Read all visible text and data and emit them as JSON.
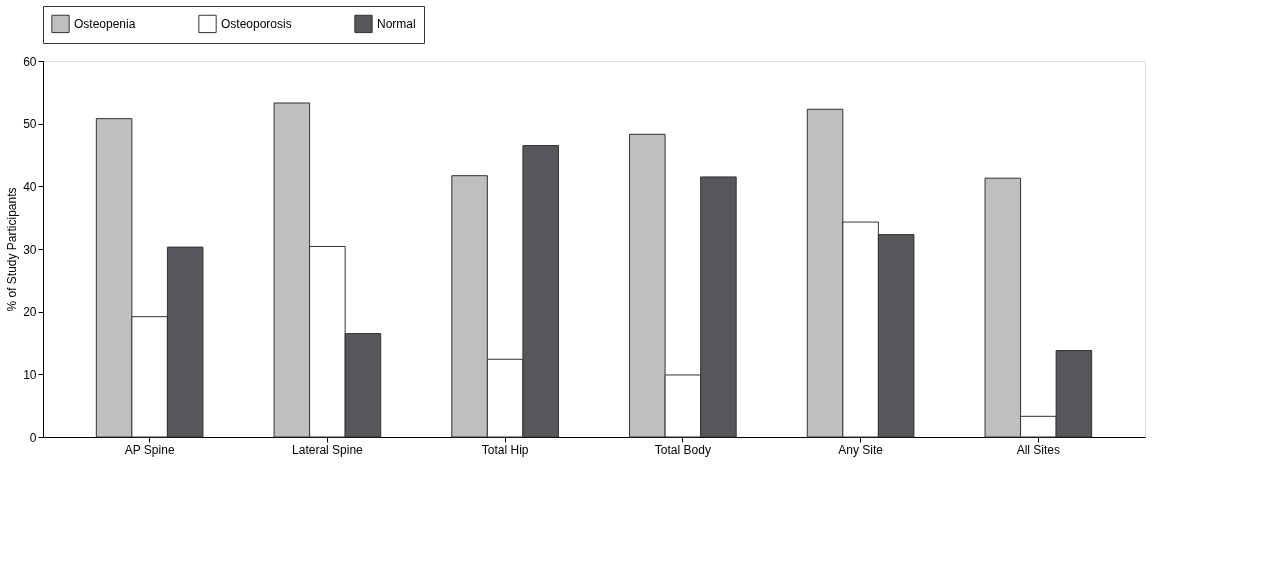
{
  "chart_data": {
    "type": "bar",
    "ylabel": "% of Study Participants",
    "categories": [
      "AP Spine",
      "Lateral Spine",
      "Total Hip",
      "Total Body",
      "Any Site",
      "All Sites"
    ],
    "series": [
      {
        "name": "Osteopenia",
        "color": "#bebfc1",
        "values": [
          50.8,
          53.3,
          41.7,
          48.3,
          52.3,
          41.3
        ]
      },
      {
        "name": "Osteoporosis",
        "color": "#ffffff",
        "values": [
          19.2,
          30.4,
          12.4,
          9.9,
          34.3,
          3.3
        ]
      },
      {
        "name": "Normal",
        "color": "#56575b",
        "values": [
          30.3,
          16.5,
          46.5,
          41.5,
          32.3,
          13.8
        ]
      }
    ],
    "ylim": [
      0,
      60
    ],
    "yticks": [
      0,
      10,
      20,
      30,
      40,
      50,
      60
    ],
    "grid": false,
    "legend": "top"
  }
}
